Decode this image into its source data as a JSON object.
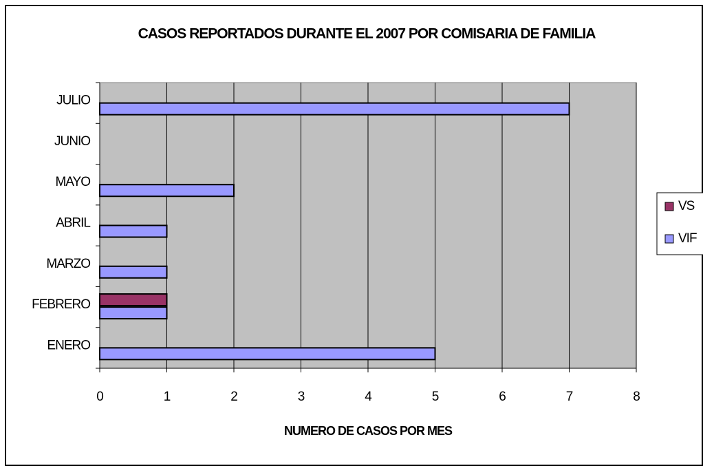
{
  "chart_data": {
    "type": "bar",
    "orientation": "horizontal",
    "title": "CASOS REPORTADOS DURANTE EL 2007 POR COMISARIA DE FAMILIA",
    "x_label": "NUMERO DE CASOS POR MES",
    "categories": [
      "ENERO",
      "FEBRERO",
      "MARZO",
      "ABRIL",
      "MAYO",
      "JUNIO",
      "JULIO"
    ],
    "series": [
      {
        "name": "VS",
        "color": "#993366",
        "values": [
          0,
          1,
          0,
          0,
          0,
          0,
          0
        ]
      },
      {
        "name": "VIF",
        "color": "#9999ff",
        "values": [
          5,
          1,
          1,
          1,
          2,
          0,
          7
        ]
      }
    ],
    "xlim": [
      0,
      8
    ],
    "xticks": [
      0,
      1,
      2,
      3,
      4,
      5,
      6,
      7,
      8
    ],
    "grid": true,
    "legend": "right",
    "plot_background": "#c0c0c0"
  }
}
